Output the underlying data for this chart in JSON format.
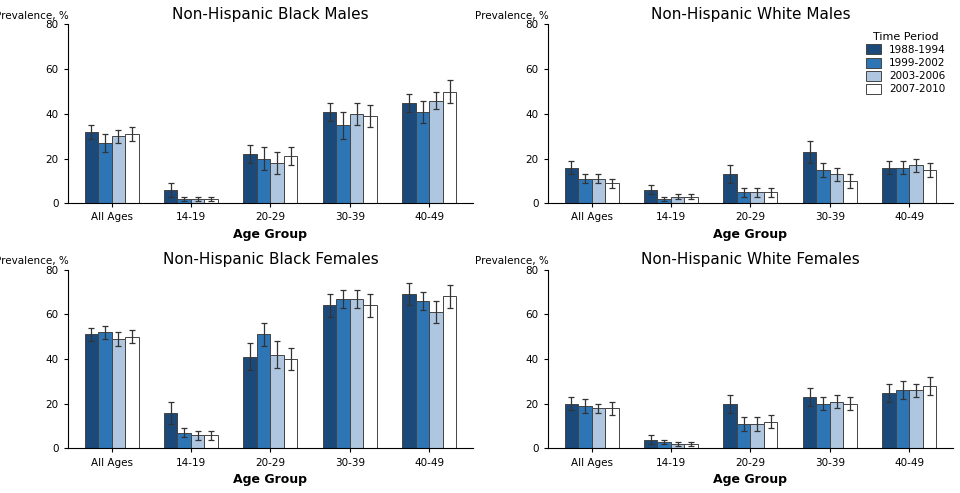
{
  "titles": [
    "Non-Hispanic Black Males",
    "Non-Hispanic White Males",
    "Non-Hispanic Black Females",
    "Non-Hispanic White Females"
  ],
  "age_groups": [
    "All Ages",
    "14-19",
    "20-29",
    "30-39",
    "40-49"
  ],
  "time_periods": [
    "1988-1994",
    "1999-2002",
    "2003-2006",
    "2007-2010"
  ],
  "colors": [
    "#1b4a7a",
    "#2e75b6",
    "#aec6df",
    "#ffffff"
  ],
  "edge_color": "#444444",
  "bar_values": {
    "NH Black Males": [
      [
        32,
        6,
        22,
        41,
        45
      ],
      [
        27,
        2,
        20,
        35,
        41
      ],
      [
        30,
        2,
        18,
        40,
        46
      ],
      [
        31,
        2,
        21,
        39,
        50
      ]
    ],
    "NH White Males": [
      [
        16,
        6,
        13,
        23,
        16
      ],
      [
        11,
        2,
        5,
        15,
        16
      ],
      [
        11,
        3,
        5,
        13,
        17
      ],
      [
        9,
        3,
        5,
        10,
        15
      ]
    ],
    "NH Black Females": [
      [
        51,
        16,
        41,
        64,
        69
      ],
      [
        52,
        7,
        51,
        67,
        66
      ],
      [
        49,
        6,
        42,
        67,
        61
      ],
      [
        50,
        6,
        40,
        64,
        68
      ]
    ],
    "NH White Females": [
      [
        20,
        4,
        20,
        23,
        25
      ],
      [
        19,
        3,
        11,
        20,
        26
      ],
      [
        18,
        2,
        11,
        21,
        26
      ],
      [
        18,
        2,
        12,
        20,
        28
      ]
    ]
  },
  "error_bars": {
    "NH Black Males": [
      [
        3,
        3,
        4,
        4,
        4
      ],
      [
        4,
        1,
        5,
        6,
        5
      ],
      [
        3,
        1,
        5,
        5,
        4
      ],
      [
        3,
        1,
        4,
        5,
        5
      ]
    ],
    "NH White Males": [
      [
        3,
        2,
        4,
        5,
        3
      ],
      [
        2,
        1,
        2,
        3,
        3
      ],
      [
        2,
        1,
        2,
        3,
        3
      ],
      [
        2,
        1,
        2,
        3,
        3
      ]
    ],
    "NH Black Females": [
      [
        3,
        5,
        6,
        5,
        5
      ],
      [
        3,
        2,
        5,
        4,
        4
      ],
      [
        3,
        2,
        6,
        4,
        5
      ],
      [
        3,
        2,
        5,
        5,
        5
      ]
    ],
    "NH White Females": [
      [
        3,
        2,
        4,
        4,
        4
      ],
      [
        3,
        1,
        3,
        3,
        4
      ],
      [
        2,
        1,
        3,
        3,
        3
      ],
      [
        3,
        1,
        3,
        3,
        4
      ]
    ]
  },
  "ylim": 80,
  "yticks": [
    0,
    20,
    40,
    60,
    80
  ],
  "xlabel": "Age Group",
  "ylabel": "Prevalence, %",
  "legend_title": "Time Period"
}
